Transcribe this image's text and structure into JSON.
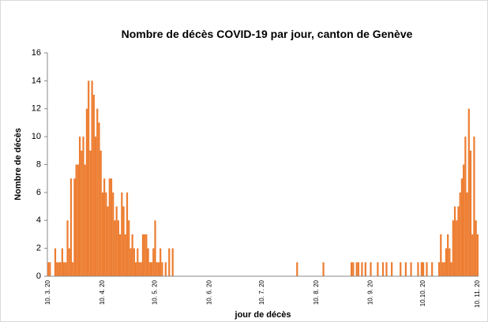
{
  "chart_data": {
    "type": "bar",
    "title": "Nombre de décès COVID-19 par jour, canton de Genève",
    "x_label": "jour de décès",
    "y_label": "Nombre de décès",
    "color": "#ed7d31",
    "ylim": [
      0,
      16
    ],
    "yticks": [
      0,
      2,
      4,
      6,
      8,
      10,
      12,
      14,
      16
    ],
    "grid": false,
    "categories": [
      "10. 3. 20",
      null,
      null,
      null,
      null,
      null,
      null,
      null,
      null,
      null,
      null,
      null,
      null,
      null,
      null,
      null,
      null,
      null,
      null,
      null,
      null,
      null,
      null,
      null,
      null,
      null,
      null,
      null,
      null,
      null,
      null,
      "10. 4. 20",
      null,
      null,
      null,
      null,
      null,
      null,
      null,
      null,
      null,
      null,
      null,
      null,
      null,
      null,
      null,
      null,
      null,
      null,
      null,
      null,
      null,
      null,
      null,
      null,
      null,
      null,
      null,
      null,
      null,
      "10. 5. 20",
      null,
      null,
      null,
      null,
      null,
      null,
      null,
      null,
      null,
      null,
      null,
      null,
      null,
      null,
      null,
      null,
      null,
      null,
      null,
      null,
      null,
      null,
      null,
      null,
      null,
      null,
      null,
      null,
      null,
      null,
      "10. 6. 20",
      null,
      null,
      null,
      null,
      null,
      null,
      null,
      null,
      null,
      null,
      null,
      null,
      null,
      null,
      null,
      null,
      null,
      null,
      null,
      null,
      null,
      null,
      null,
      null,
      null,
      null,
      null,
      null,
      null,
      "10. 7. 20",
      null,
      null,
      null,
      null,
      null,
      null,
      null,
      null,
      null,
      null,
      null,
      null,
      null,
      null,
      null,
      null,
      null,
      null,
      null,
      null,
      null,
      null,
      null,
      null,
      null,
      null,
      null,
      null,
      null,
      null,
      "10. 8. 20",
      null,
      null,
      null,
      null,
      null,
      null,
      null,
      null,
      null,
      null,
      null,
      null,
      null,
      null,
      null,
      null,
      null,
      null,
      null,
      null,
      null,
      null,
      null,
      null,
      null,
      null,
      null,
      null,
      null,
      null,
      "10. 9. 20",
      null,
      null,
      null,
      null,
      null,
      null,
      null,
      null,
      null,
      null,
      null,
      null,
      null,
      null,
      null,
      null,
      null,
      null,
      null,
      null,
      null,
      null,
      null,
      null,
      null,
      null,
      null,
      null,
      null,
      "10.10. 20",
      null,
      null,
      null,
      null,
      null,
      null,
      null,
      null,
      null,
      null,
      null,
      null,
      null,
      null,
      null,
      null,
      null,
      null,
      null,
      null,
      null,
      null,
      null,
      null,
      null,
      null,
      null,
      null,
      null,
      null,
      "10. 11. 20"
    ],
    "values": [
      1,
      1,
      0,
      0,
      2,
      1,
      1,
      1,
      2,
      1,
      1,
      4,
      2,
      7,
      1,
      7,
      8,
      8,
      10,
      9,
      10,
      8,
      12,
      14,
      9,
      14,
      13,
      10,
      12,
      11,
      9,
      6,
      7,
      6,
      5,
      7,
      7,
      6,
      4,
      5,
      4,
      3,
      6,
      5,
      3,
      6,
      4,
      2,
      3,
      2,
      1,
      2,
      1,
      1,
      3,
      3,
      3,
      2,
      1,
      1,
      2,
      4,
      1,
      1,
      2,
      1,
      0,
      1,
      0,
      2,
      0,
      2,
      0,
      0,
      0,
      0,
      0,
      0,
      0,
      0,
      0,
      0,
      0,
      0,
      0,
      0,
      0,
      0,
      0,
      0,
      0,
      0,
      0,
      0,
      0,
      0,
      0,
      0,
      0,
      0,
      0,
      0,
      0,
      0,
      0,
      0,
      0,
      0,
      0,
      0,
      0,
      0,
      0,
      0,
      0,
      0,
      0,
      0,
      0,
      0,
      0,
      0,
      0,
      0,
      0,
      0,
      0,
      0,
      0,
      0,
      0,
      0,
      0,
      0,
      0,
      0,
      0,
      0,
      0,
      0,
      0,
      0,
      1,
      0,
      0,
      0,
      0,
      0,
      0,
      0,
      0,
      0,
      0,
      0,
      0,
      0,
      0,
      1,
      0,
      0,
      0,
      0,
      0,
      0,
      0,
      0,
      0,
      0,
      0,
      0,
      0,
      0,
      0,
      1,
      1,
      0,
      1,
      1,
      0,
      1,
      0,
      1,
      0,
      0,
      1,
      0,
      0,
      0,
      1,
      0,
      0,
      1,
      0,
      1,
      0,
      0,
      1,
      0,
      0,
      0,
      0,
      1,
      0,
      0,
      1,
      0,
      0,
      1,
      0,
      0,
      0,
      1,
      0,
      1,
      1,
      0,
      1,
      0,
      0,
      1,
      0,
      0,
      0,
      1,
      3,
      1,
      1,
      2,
      3,
      2,
      1,
      4,
      5,
      4,
      5,
      6,
      7,
      8,
      10,
      6,
      12,
      9,
      3,
      10,
      4,
      3
    ]
  }
}
